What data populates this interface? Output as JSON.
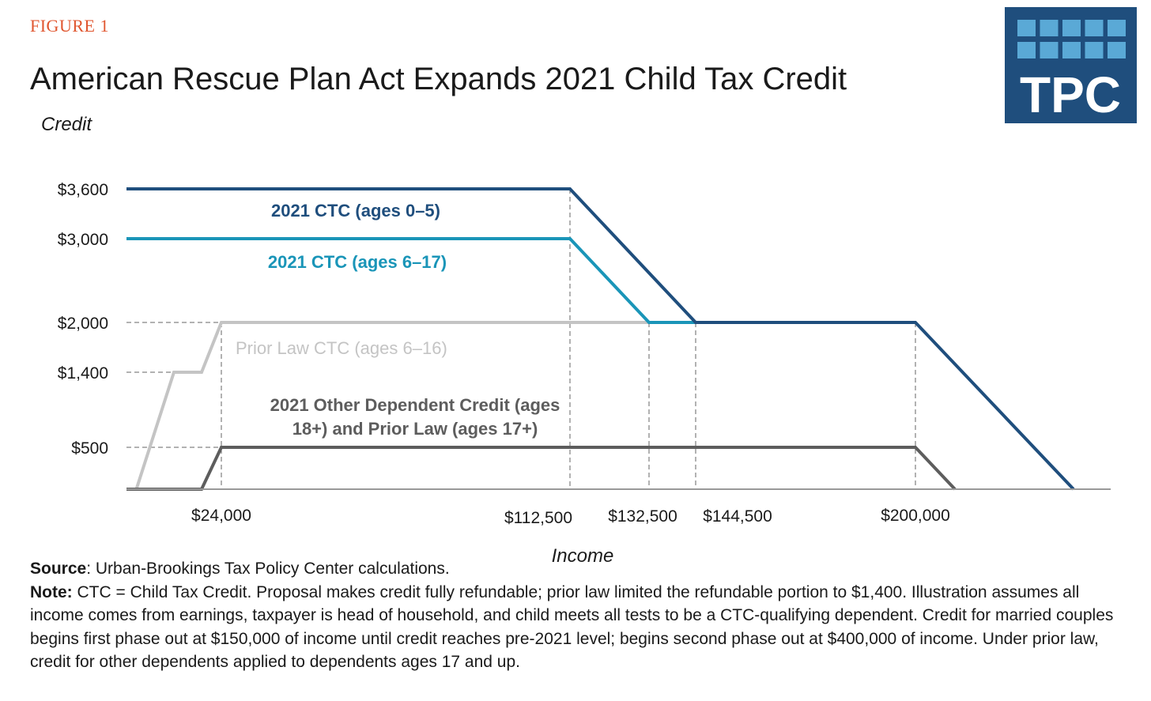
{
  "figure_label": "FIGURE 1",
  "title": "American Rescue Plan Act Expands 2021 Child Tax Credit",
  "logo_text": "TPC",
  "colors": {
    "figure_label": "#e0562f",
    "ctc_0_5": "#1f4e7d",
    "ctc_6_17": "#1a95b8",
    "prior_law": "#c4c4c4",
    "other_dependent": "#5d5d5d",
    "logo_bg": "#1f4e7d",
    "logo_tile": "#5aa9d6"
  },
  "chart_data": {
    "type": "line",
    "ylabel": "Credit",
    "xlabel": "Income",
    "y_ticks": [
      {
        "value": 3600,
        "label": "$3,600"
      },
      {
        "value": 3000,
        "label": "$3,000"
      },
      {
        "value": 2000,
        "label": "$2,000"
      },
      {
        "value": 1400,
        "label": "$1,400"
      },
      {
        "value": 500,
        "label": "$500"
      }
    ],
    "x_ticks": [
      {
        "value": 24000,
        "label": "$24,000"
      },
      {
        "value": 112500,
        "label": "$112,500"
      },
      {
        "value": 132500,
        "label": "$132,500"
      },
      {
        "value": 144500,
        "label": "$144,500"
      },
      {
        "value": 200000,
        "label": "$200,000"
      }
    ],
    "xlim": [
      0,
      250000
    ],
    "ylim": [
      0,
      3600
    ],
    "series": [
      {
        "name": "2021 CTC (ages 0–5)",
        "color_key": "ctc_0_5",
        "points": [
          [
            0,
            3600
          ],
          [
            112500,
            3600
          ],
          [
            144500,
            2000
          ],
          [
            200000,
            2000
          ],
          [
            240000,
            0
          ]
        ]
      },
      {
        "name": "2021 CTC (ages 6–17)",
        "color_key": "ctc_6_17",
        "points": [
          [
            0,
            3000
          ],
          [
            112500,
            3000
          ],
          [
            132500,
            2000
          ],
          [
            144500,
            2000
          ]
        ]
      },
      {
        "name": "Prior Law CTC (ages 6–16)",
        "color_key": "prior_law",
        "points": [
          [
            2500,
            0
          ],
          [
            12000,
            1400
          ],
          [
            19000,
            1400
          ],
          [
            24000,
            2000
          ],
          [
            144500,
            2000
          ]
        ]
      },
      {
        "name": "2021 Other Dependent Credit (ages 18+) and Prior Law (ages 17+)",
        "name_lines": [
          "2021 Other Dependent Credit (ages",
          "18+) and Prior Law (ages 17+)"
        ],
        "color_key": "other_dependent",
        "points": [
          [
            0,
            0
          ],
          [
            19000,
            0
          ],
          [
            24000,
            500
          ],
          [
            200000,
            500
          ],
          [
            210000,
            0
          ]
        ]
      }
    ]
  },
  "footer": {
    "source_label": "Source",
    "source_text": ": Urban-Brookings Tax Policy Center calculations.",
    "note_label": "Note:",
    "note_text": " CTC = Child Tax Credit. Proposal makes credit fully refundable; prior law limited the refundable portion to $1,400. Illustration assumes all income comes from earnings, taxpayer is head of household, and child meets all tests to be a CTC-qualifying dependent. Credit for married couples begins first phase out at $150,000 of income until credit reaches pre-2021 level; begins second phase out at $400,000 of income. Under prior law, credit for other dependents applied to dependents ages 17 and up."
  }
}
